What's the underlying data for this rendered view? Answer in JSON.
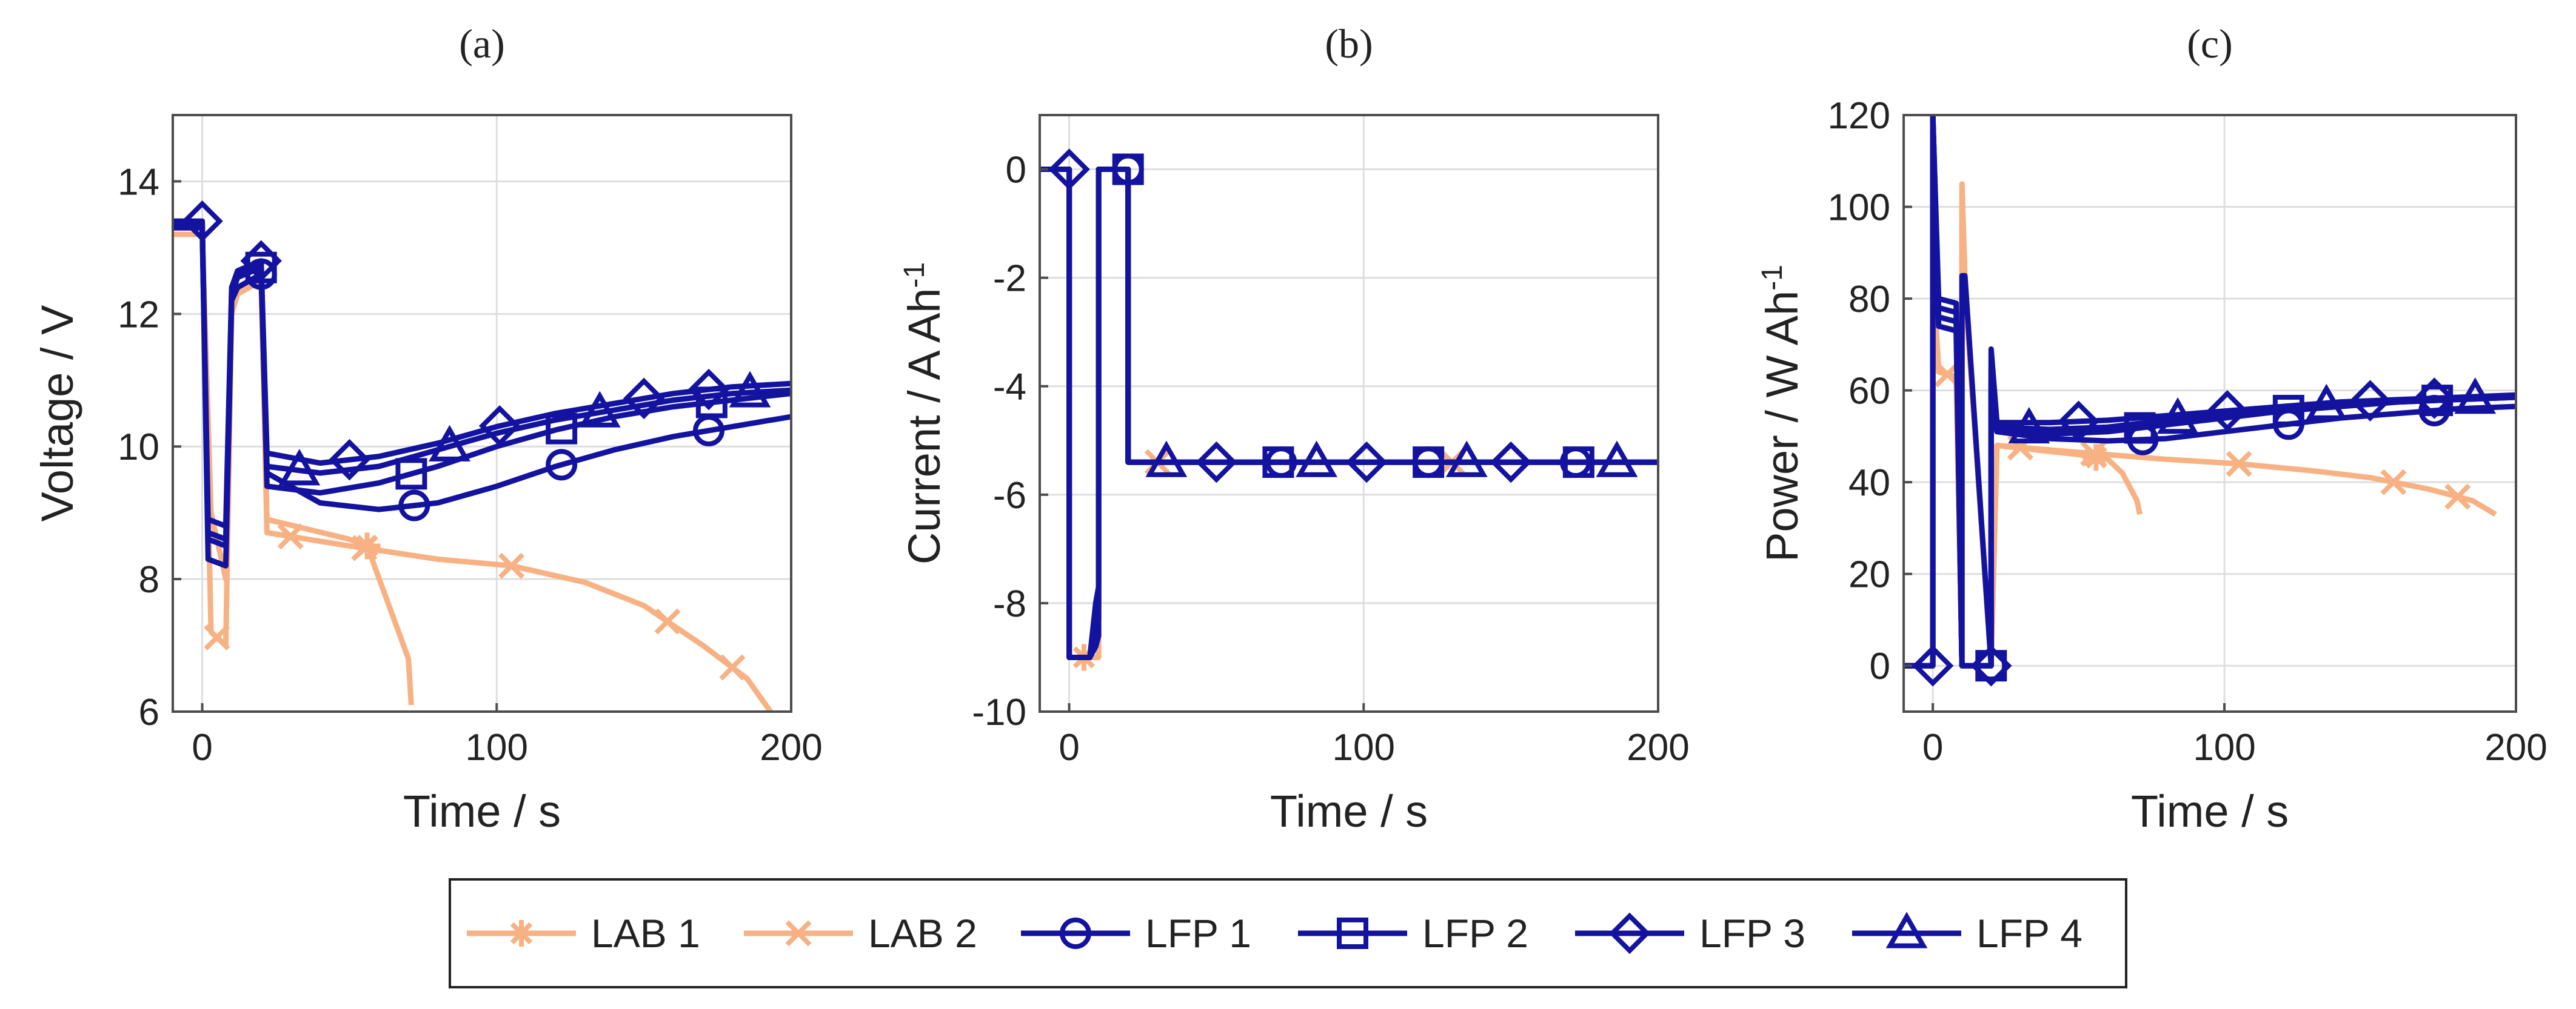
{
  "colors": {
    "lab": "#f7b183",
    "lfp": "#1313a0",
    "grid": "#dedede",
    "axis": "#4d4d4d"
  },
  "chart_data": [
    {
      "type": "line",
      "panel_label": "(a)",
      "title": "",
      "xlabel": "Time / s",
      "ylabel": "Voltage / V",
      "xlim": [
        -10,
        200
      ],
      "ylim": [
        6,
        15
      ],
      "xticks": [
        0,
        100,
        200
      ],
      "xtick_labels": [
        "0",
        "100",
        "200"
      ],
      "yticks": [
        6,
        8,
        10,
        12,
        14
      ],
      "ytick_labels": [
        "6",
        "8",
        "10",
        "12",
        "14"
      ],
      "grid": true,
      "series": [
        {
          "name": "LAB 1",
          "marker": "asterisk",
          "x": [
            -10,
            0,
            3,
            8,
            10,
            12,
            20,
            22,
            50,
            56,
            70,
            71
          ],
          "y": [
            13.2,
            13.2,
            9.0,
            8.0,
            12.0,
            12.4,
            12.5,
            8.9,
            8.6,
            8.5,
            6.8,
            6.1
          ],
          "marker_x": [
            56
          ]
        },
        {
          "name": "LAB 2",
          "marker": "x",
          "x": [
            -10,
            0,
            3,
            8,
            10,
            12,
            20,
            22,
            50,
            80,
            105,
            130,
            150,
            170,
            185,
            193
          ],
          "y": [
            13.2,
            13.2,
            7.2,
            7.0,
            12.0,
            12.3,
            12.5,
            8.7,
            8.5,
            8.3,
            8.2,
            7.95,
            7.6,
            7.0,
            6.5,
            6.0
          ],
          "marker_x": [
            5,
            30,
            55,
            105,
            158,
            180
          ]
        },
        {
          "name": "LFP 1",
          "marker": "circle",
          "x": [
            -10,
            0,
            2,
            8,
            10,
            12,
            20,
            22,
            40,
            60,
            80,
            100,
            120,
            140,
            160,
            180,
            200
          ],
          "y": [
            13.3,
            13.3,
            8.3,
            8.2,
            12.2,
            12.4,
            12.6,
            9.6,
            9.15,
            9.05,
            9.15,
            9.4,
            9.7,
            9.95,
            10.15,
            10.3,
            10.45
          ],
          "marker_x": [
            20,
            72,
            122,
            172
          ]
        },
        {
          "name": "LFP 2",
          "marker": "square",
          "x": [
            -10,
            0,
            2,
            8,
            10,
            12,
            20,
            22,
            40,
            60,
            80,
            100,
            120,
            140,
            160,
            180,
            200
          ],
          "y": [
            13.35,
            13.35,
            8.6,
            8.5,
            12.3,
            12.55,
            12.7,
            9.4,
            9.3,
            9.45,
            9.7,
            10.0,
            10.25,
            10.45,
            10.6,
            10.7,
            10.8
          ],
          "marker_x": [
            20,
            71,
            122,
            173
          ]
        },
        {
          "name": "LFP 3",
          "marker": "diamond",
          "x": [
            -10,
            0,
            2,
            8,
            10,
            12,
            20,
            22,
            40,
            60,
            80,
            100,
            120,
            140,
            160,
            180,
            200
          ],
          "y": [
            13.4,
            13.4,
            8.9,
            8.8,
            12.4,
            12.65,
            12.8,
            9.9,
            9.75,
            9.85,
            10.05,
            10.3,
            10.5,
            10.65,
            10.8,
            10.9,
            10.95
          ],
          "marker_x": [
            0,
            20,
            50,
            101,
            150,
            172
          ]
        },
        {
          "name": "LFP 4",
          "marker": "triangle",
          "x": [
            -10,
            0,
            2,
            8,
            10,
            12,
            20,
            22,
            40,
            60,
            80,
            100,
            120,
            140,
            160,
            180,
            200
          ],
          "y": [
            13.3,
            13.3,
            8.7,
            8.6,
            12.35,
            12.6,
            12.75,
            9.7,
            9.6,
            9.7,
            9.95,
            10.2,
            10.4,
            10.55,
            10.7,
            10.8,
            10.85
          ],
          "marker_x": [
            33,
            84,
            135,
            186
          ]
        }
      ]
    },
    {
      "type": "line",
      "panel_label": "(b)",
      "title": "",
      "xlabel": "Time / s",
      "ylabel": "Current / A Ah",
      "ylabel_superscript": "-1",
      "xlim": [
        -10,
        200
      ],
      "ylim": [
        -10,
        1
      ],
      "xticks": [
        0,
        100,
        200
      ],
      "xtick_labels": [
        "0",
        "100",
        "200"
      ],
      "yticks": [
        -10,
        -8,
        -6,
        -4,
        -2,
        0
      ],
      "ytick_labels": [
        "-10",
        "-8",
        "-6",
        "-4",
        "-2",
        "0"
      ],
      "grid": true,
      "series": [
        {
          "name": "LAB 1",
          "marker": "asterisk",
          "x": [
            -10,
            0,
            0,
            10,
            10,
            20,
            20,
            200
          ],
          "y": [
            0,
            0,
            -9,
            -9,
            0,
            0,
            -5.4,
            -5.4
          ],
          "marker_x": [
            5
          ]
        },
        {
          "name": "LAB 2",
          "marker": "x",
          "x": [
            -10,
            0,
            0,
            10,
            10,
            20,
            20,
            200
          ],
          "y": [
            0,
            0,
            -9,
            -9,
            0,
            0,
            -5.4,
            -5.4
          ],
          "marker_x": [
            30,
            130
          ]
        },
        {
          "name": "LFP 1",
          "marker": "circle",
          "x": [
            -10,
            0,
            0,
            7,
            9,
            10,
            10,
            20,
            20,
            200
          ],
          "y": [
            0,
            0,
            -9,
            -9,
            -8.0,
            -7.7,
            0,
            0,
            -5.4,
            -5.4
          ],
          "marker_x": [
            20,
            72,
            122,
            172
          ]
        },
        {
          "name": "LFP 2",
          "marker": "square",
          "x": [
            -10,
            0,
            0,
            7,
            9,
            10,
            10,
            20,
            20,
            200
          ],
          "y": [
            0,
            0,
            -9,
            -9,
            -8.6,
            -8.3,
            0,
            0,
            -5.4,
            -5.4
          ],
          "marker_x": [
            20,
            71,
            122,
            173
          ]
        },
        {
          "name": "LFP 3",
          "marker": "diamond",
          "x": [
            -10,
            0,
            0,
            7,
            9,
            10,
            10,
            20,
            20,
            200
          ],
          "y": [
            0,
            0,
            -9,
            -9,
            -8.8,
            -8.6,
            0,
            0,
            -5.4,
            -5.4
          ],
          "marker_x": [
            0,
            50,
            101,
            150
          ]
        },
        {
          "name": "LFP 4",
          "marker": "triangle",
          "x": [
            -10,
            0,
            0,
            7,
            9,
            10,
            10,
            20,
            20,
            200
          ],
          "y": [
            0,
            0,
            -9,
            -9,
            -8.4,
            -8.0,
            0,
            0,
            -5.4,
            -5.4
          ],
          "marker_x": [
            33,
            84,
            135,
            186
          ]
        }
      ]
    },
    {
      "type": "line",
      "panel_label": "(c)",
      "title": "",
      "xlabel": "Time / s",
      "ylabel": "Power / W Ah",
      "ylabel_superscript": "-1",
      "xlim": [
        -10,
        200
      ],
      "ylim": [
        -10,
        120
      ],
      "xticks": [
        0,
        100,
        200
      ],
      "xtick_labels": [
        "0",
        "100",
        "200"
      ],
      "yticks": [
        0,
        20,
        40,
        60,
        80,
        100,
        120
      ],
      "ytick_labels": [
        "0",
        "20",
        "40",
        "60",
        "80",
        "100",
        "120"
      ],
      "grid": true,
      "series": [
        {
          "name": "LAB 1",
          "marker": "asterisk",
          "x": [
            -10,
            0,
            0,
            2,
            8,
            10,
            10,
            11,
            20,
            20,
            22,
            50,
            60,
            65,
            70,
            71
          ],
          "y": [
            0,
            0,
            85,
            65,
            62,
            0,
            105,
            85,
            0,
            0,
            48,
            46,
            45,
            42,
            36,
            33
          ],
          "marker_x": [
            56
          ]
        },
        {
          "name": "LAB 2",
          "marker": "x",
          "x": [
            -10,
            0,
            0,
            2,
            8,
            10,
            10,
            11,
            20,
            20,
            22,
            50,
            80,
            105,
            130,
            150,
            170,
            185,
            193
          ],
          "y": [
            0,
            0,
            85,
            64,
            63,
            0,
            100,
            82,
            0,
            0,
            48,
            46.5,
            45,
            44,
            42.5,
            41,
            38.5,
            36,
            33
          ],
          "marker_x": [
            5,
            30,
            55,
            105,
            158,
            180
          ]
        },
        {
          "name": "LFP 1",
          "marker": "circle",
          "x": [
            -10,
            0,
            0,
            2,
            8,
            10,
            10,
            11,
            20,
            20,
            22,
            40,
            60,
            80,
            100,
            120,
            140,
            160,
            180,
            200
          ],
          "y": [
            0,
            0,
            120,
            74,
            73,
            0,
            0,
            0,
            0,
            60,
            51,
            49.5,
            49,
            49.5,
            51,
            52.5,
            54,
            55,
            56,
            56.5
          ],
          "marker_x": [
            20,
            72,
            122,
            172
          ]
        },
        {
          "name": "LFP 2",
          "marker": "square",
          "x": [
            -10,
            0,
            0,
            2,
            8,
            10,
            10,
            11,
            20,
            20,
            22,
            40,
            60,
            80,
            100,
            120,
            140,
            160,
            180,
            200
          ],
          "y": [
            0,
            0,
            120,
            76,
            75,
            0,
            0,
            0,
            0,
            65,
            51,
            50.5,
            51,
            52.5,
            54,
            55.5,
            56.5,
            57.5,
            58,
            58.5
          ],
          "marker_x": [
            20,
            71,
            122,
            173
          ]
        },
        {
          "name": "LFP 3",
          "marker": "diamond",
          "x": [
            -10,
            0,
            0,
            2,
            8,
            10,
            10,
            11,
            20,
            20,
            22,
            40,
            60,
            80,
            100,
            120,
            140,
            160,
            180,
            200
          ],
          "y": [
            0,
            0,
            120,
            80,
            79,
            0,
            85,
            85,
            0,
            69,
            53,
            53,
            53.5,
            54.5,
            55.5,
            56.5,
            57.5,
            58,
            58.5,
            59
          ],
          "marker_x": [
            0,
            20,
            50,
            101,
            150,
            172
          ]
        },
        {
          "name": "LFP 4",
          "marker": "triangle",
          "x": [
            -10,
            0,
            0,
            2,
            8,
            10,
            10,
            11,
            20,
            20,
            22,
            40,
            60,
            80,
            100,
            120,
            140,
            160,
            180,
            200
          ],
          "y": [
            0,
            0,
            120,
            78,
            77,
            0,
            0,
            0,
            0,
            62,
            52,
            51.5,
            52,
            53.5,
            55,
            56,
            57,
            57.5,
            58,
            58.5
          ],
          "marker_x": [
            33,
            84,
            135,
            186
          ]
        }
      ]
    }
  ],
  "legend": {
    "placement": "bottom-center",
    "entries": [
      {
        "label": "LAB 1",
        "marker": "asterisk",
        "group": "lab"
      },
      {
        "label": "LAB 2",
        "marker": "x",
        "group": "lab"
      },
      {
        "label": "LFP 1",
        "marker": "circle",
        "group": "lfp"
      },
      {
        "label": "LFP 2",
        "marker": "square",
        "group": "lfp"
      },
      {
        "label": "LFP 3",
        "marker": "diamond",
        "group": "lfp"
      },
      {
        "label": "LFP 4",
        "marker": "triangle",
        "group": "lfp"
      }
    ]
  }
}
